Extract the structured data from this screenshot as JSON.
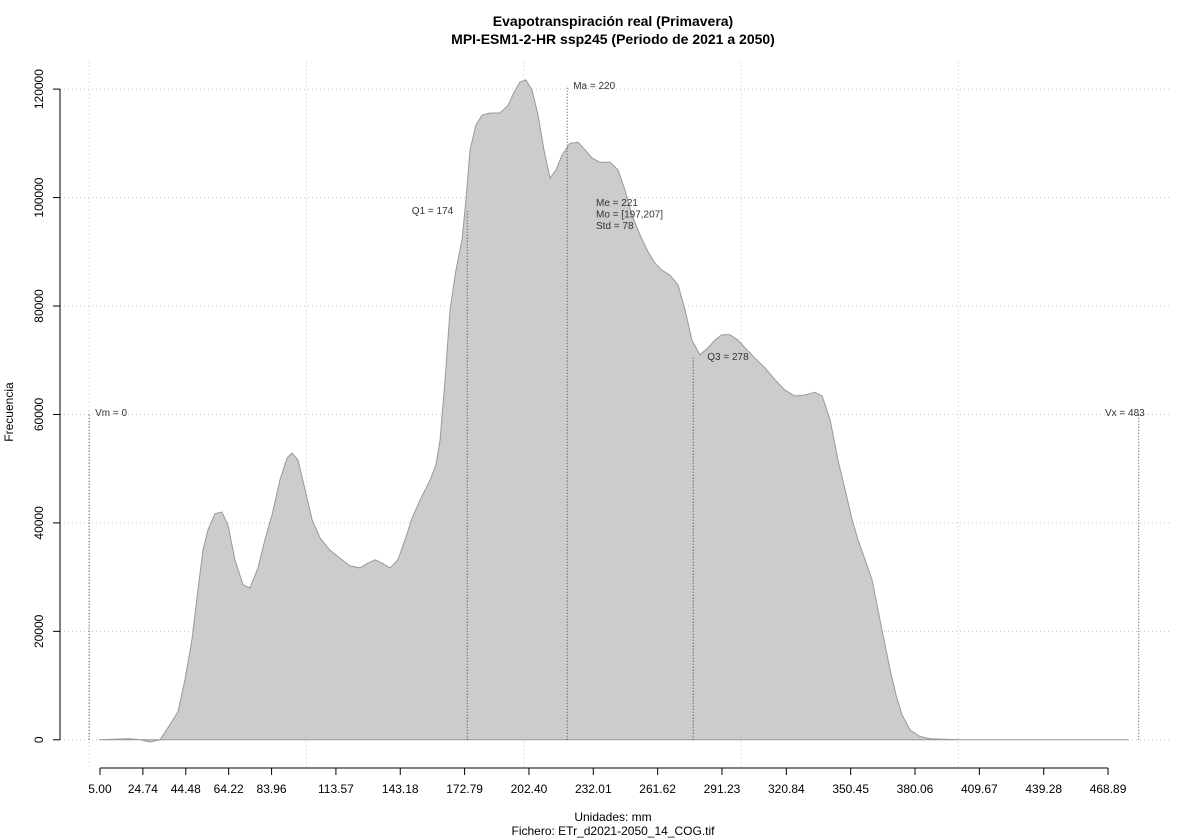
{
  "chart_data": {
    "type": "area",
    "title": "Evapotranspiración real (Primavera)",
    "subtitle": "MPI-ESM1-2-HR ssp245 (Periodo de 2021 a 2050)",
    "x_label": "Unidades: mm",
    "caption": "Fichero: ETr_d2021-2050_14_COG.tif",
    "y_label": "Frecuencia",
    "color": "#cccccc",
    "line_color": "#999999",
    "x": [
      5.0,
      18.8,
      23.4,
      28.0,
      32.6,
      37.2,
      40.9,
      44.1,
      47.3,
      50.1,
      52.4,
      54.7,
      57.9,
      61.1,
      63.9,
      67.1,
      70.8,
      74.0,
      77.7,
      80.9,
      84.2,
      87.8,
      91.1,
      93.4,
      96.1,
      99.4,
      102.6,
      106.3,
      110.8,
      115.4,
      120.0,
      124.6,
      128.3,
      131.6,
      134.8,
      138.5,
      142.1,
      145.4,
      148.6,
      152.3,
      156.9,
      159.6,
      161.5,
      163.8,
      166.1,
      168.8,
      171.6,
      173.4,
      175.3,
      178.0,
      180.8,
      184.5,
      189.1,
      192.8,
      195.5,
      198.3,
      201.0,
      203.8,
      206.6,
      209.3,
      212.1,
      214.9,
      217.6,
      221.3,
      225.0,
      228.2,
      231.4,
      235.1,
      239.7,
      243.4,
      246.6,
      249.8,
      253.5,
      257.2,
      260.4,
      263.6,
      267.3,
      271.0,
      274.2,
      277.4,
      281.1,
      284.8,
      288.0,
      291.2,
      294.9,
      298.6,
      301.8,
      306.4,
      311.0,
      315.6,
      320.2,
      324.8,
      329.4,
      334.0,
      337.3,
      341.0,
      344.6,
      347.9,
      351.1,
      353.8,
      357.1,
      360.3,
      363.0,
      365.8,
      368.6,
      371.3,
      374.1,
      377.8,
      382.4,
      387.0,
      400.8,
      419.2,
      478.1
    ],
    "values": [
      0,
      200,
      0,
      -400,
      0,
      2800,
      5200,
      11100,
      18400,
      27700,
      35000,
      38700,
      41700,
      42000,
      39600,
      33200,
      28600,
      28000,
      31700,
      36900,
      41500,
      47900,
      52000,
      52900,
      51600,
      46100,
      40600,
      37200,
      35000,
      33500,
      32100,
      31700,
      32600,
      33200,
      32600,
      31700,
      33200,
      36900,
      40900,
      44200,
      47900,
      50700,
      55300,
      66400,
      79300,
      86600,
      92200,
      99500,
      108800,
      113400,
      115200,
      115600,
      115600,
      117000,
      119400,
      121300,
      121700,
      119800,
      115200,
      108800,
      103600,
      105100,
      107800,
      110000,
      110200,
      108800,
      107300,
      106500,
      106500,
      105100,
      101400,
      96800,
      93100,
      90000,
      87900,
      86600,
      85700,
      83900,
      79300,
      73700,
      71000,
      72300,
      73700,
      74700,
      74700,
      73700,
      72300,
      70400,
      68600,
      66400,
      64500,
      63400,
      63600,
      64100,
      63400,
      59000,
      51600,
      46100,
      40600,
      36900,
      33200,
      29500,
      24000,
      18400,
      12900,
      8300,
      4600,
      1800,
      600,
      200,
      0,
      0,
      0
    ],
    "xlim": [
      -13.4,
      497.4
    ],
    "ylim": [
      -5200,
      125000
    ],
    "xticks": [
      {
        "value": 5,
        "label": "5.00"
      },
      24.74,
      44.48,
      64.22,
      83.96,
      113.57,
      143.18,
      172.79,
      {
        "value": 202.4,
        "label": "202.40"
      },
      232.01,
      261.62,
      291.23,
      320.84,
      350.45,
      380.06,
      409.67,
      439.28,
      468.89
    ],
    "yticks": [
      0,
      20000,
      40000,
      60000,
      80000,
      100000,
      120000
    ],
    "xgrid": [
      0,
      100,
      200,
      300,
      400
    ],
    "grid": true,
    "annotations": [
      {
        "label": "Vm = 0",
        "value": 0
      },
      {
        "label": "Q1 = 174",
        "value": 174
      },
      {
        "label": "Ma = 220",
        "value": 220
      },
      {
        "label": "Q3 = 278",
        "value": 278
      },
      {
        "label": "Vx = 483",
        "value": 483
      }
    ],
    "stats": [
      "Me = 221",
      "Mo = [197,207]",
      "Std = 78"
    ]
  }
}
